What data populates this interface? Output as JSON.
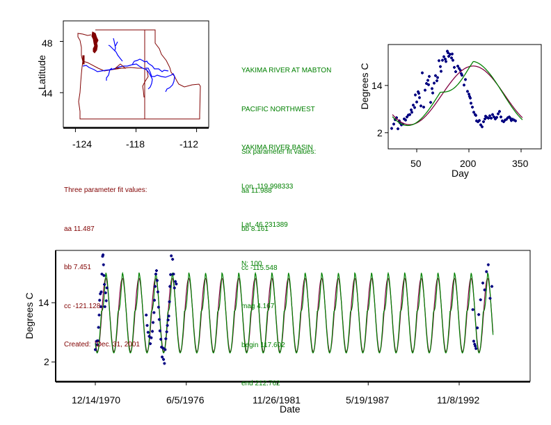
{
  "colors": {
    "map_border": "#800000",
    "map_river": "#0000ff",
    "station_info": "#008000",
    "three_param_text": "#800000",
    "points": "#000080",
    "three_param_curve": "#800040",
    "six_param_curve": "#008000"
  },
  "station": {
    "lines": [
      "YAKIMA RIVER AT MABTON",
      "PACIFIC NORTHWEST",
      "YAKIMA RIVER BASIN",
      "Lon. 119.998333",
      "Lat. 46.231389",
      "N: 100"
    ]
  },
  "six_param": {
    "title": "Six parameter fit values:",
    "lines": [
      "aa 11.988",
      "bb 8.161",
      "cc -115.548",
      "mag 4.167",
      "begin 117.602",
      "end 212.762"
    ]
  },
  "three_param": {
    "title": "Three parameter fit values:",
    "lines": [
      "aa 11.487",
      "bb 7.451",
      "cc -121.128",
      "Created:   Dec. 31, 2001"
    ]
  },
  "chart_data": [
    {
      "type": "map",
      "title": "",
      "xlabel": "",
      "ylabel": "Latitude",
      "xlim": [
        -125.2,
        -110.8
      ],
      "ylim": [
        41.3,
        49.6
      ],
      "xticks": [
        -124,
        -118,
        -112
      ],
      "xtick_labels": [
        "-124",
        "-118",
        "-112"
      ],
      "yticks": [
        48,
        44
      ],
      "ytick_labels": [
        "48",
        "44"
      ],
      "layers": [
        "state boundaries (WA, OR, ID)",
        "rivers (Columbia, Snake, Yakima)",
        "station marker"
      ]
    },
    {
      "type": "scatter",
      "title": "",
      "xlabel": "Day",
      "ylabel": "Degrees C",
      "xlim": [
        -32,
        408
      ],
      "ylim": [
        -2.1,
        24.4
      ],
      "xticks": [
        50,
        200,
        350
      ],
      "xtick_labels": [
        "50",
        "200",
        "350"
      ],
      "yticks": [
        14,
        2
      ],
      "ytick_labels": [
        "14",
        "2"
      ],
      "series": [
        {
          "name": "observations",
          "kind": "points",
          "x": [
            -22,
            -16,
            -12,
            -8,
            -4,
            0,
            2,
            6,
            10,
            14,
            18,
            22,
            26,
            30,
            34,
            36,
            40,
            44,
            46,
            50,
            54,
            56,
            58,
            62,
            66,
            70,
            74,
            78,
            82,
            84,
            86,
            90,
            94,
            96,
            100,
            104,
            108,
            110,
            114,
            118,
            120,
            124,
            128,
            132,
            134,
            138,
            140,
            142,
            146,
            150,
            152,
            154,
            158,
            162,
            168,
            172,
            176,
            178,
            180,
            186,
            190,
            196,
            200,
            202,
            204,
            206,
            210,
            214,
            218,
            220,
            222,
            226,
            230,
            234,
            238,
            242,
            246,
            248,
            252,
            256,
            260,
            264,
            268,
            272,
            276,
            280,
            284,
            288,
            292,
            296,
            300,
            304,
            308,
            312,
            316,
            320,
            322,
            326,
            330,
            334
          ],
          "y": [
            3.1,
            4.2,
            5.3,
            5.8,
            3.0,
            5.0,
            4.5,
            4.0,
            4.2,
            5.5,
            5.2,
            6.0,
            6.5,
            6.6,
            7.8,
            7.2,
            9.0,
            8.4,
            11.6,
            9.8,
            12.4,
            12.0,
            10.9,
            8.8,
            17.2,
            8.5,
            12.8,
            14.5,
            15.3,
            14.2,
            16.3,
            9.7,
            13.2,
            12.1,
            14.6,
            16.5,
            15.2,
            16.0,
            20.3,
            18.8,
            17.6,
            20.4,
            21.3,
            20.7,
            20.1,
            22.7,
            22.3,
            21.4,
            21.9,
            21.0,
            22.0,
            20.4,
            18.6,
            17.5,
            18.9,
            18.3,
            17.8,
            17.0,
            16.6,
            14.1,
            15.5,
            12.5,
            11.8,
            11.2,
            10.8,
            9.5,
            8.5,
            7.2,
            6.6,
            6.4,
            5.0,
            4.8,
            5.1,
            4.0,
            3.5,
            4.8,
            5.5,
            6.2,
            5.9,
            5.7,
            6.3,
            5.7,
            6.6,
            6.0,
            5.5,
            5.9,
            6.8,
            7.4,
            6.0,
            5.0,
            4.8,
            5.2,
            5.4,
            5.8,
            6.0,
            5.6,
            5.1,
            5.4,
            5.2,
            5.0
          ]
        },
        {
          "name": "three parameter fit",
          "kind": "curve",
          "aa": 11.487,
          "bb": 7.451,
          "cc": -121.128
        },
        {
          "name": "six parameter fit",
          "kind": "curve",
          "aa": 11.988,
          "bb": 8.161,
          "cc": -115.548,
          "mag": 4.167,
          "begin": 117.602,
          "end": 212.762
        }
      ],
      "x_range_drawn": [
        -20,
        355
      ]
    },
    {
      "type": "line",
      "title": "",
      "xlabel": "Date",
      "ylabel": "Degrees C",
      "x_units": "days since 12/14/1970",
      "xlim": [
        -872,
        9560
      ],
      "ylim": [
        -1.9,
        24.6
      ],
      "xticks": [
        0,
        2000,
        4000,
        6000,
        8000
      ],
      "xtick_labels": [
        "12/14/1970",
        "6/5/1976",
        "11/26/1981",
        "5/19/1987",
        "11/8/1992"
      ],
      "yticks": [
        14,
        2
      ],
      "ytick_labels": [
        "14",
        "2"
      ],
      "curve_range": [
        0,
        8750
      ],
      "series": [
        {
          "name": "observations",
          "kind": "points",
          "x": [
            0,
            30,
            40,
            55,
            70,
            85,
            95,
            110,
            120,
            130,
            145,
            160,
            170,
            180,
            190,
            200,
            210,
            225,
            240,
            255,
            1120,
            1140,
            1160,
            1185,
            1210,
            1230,
            1255,
            1270,
            1290,
            1300,
            1315,
            1330,
            1345,
            1360,
            1375,
            1390,
            1405,
            1420,
            1440,
            1455,
            1470,
            1490,
            1500,
            1520,
            1535,
            1550,
            1570,
            1585,
            1600,
            1615,
            1630,
            1640,
            1655,
            1670,
            1700,
            1720,
            1740,
            1760,
            1780,
            8300,
            8320,
            8340,
            8355,
            8370,
            8400,
            8430,
            8470,
            8520,
            8560,
            8600,
            8640,
            8680,
            8720
          ],
          "y": [
            4.5,
            6.2,
            5.5,
            6.3,
            9.0,
            11.5,
            14.5,
            15.8,
            13.2,
            16.2,
            19.8,
            23.4,
            23.7,
            21.7,
            19.5,
            17.7,
            13.2,
            16.0,
            14.4,
            17.0,
            11.5,
            9.4,
            8.0,
            7.2,
            5.7,
            6.9,
            8.2,
            10.0,
            12.0,
            14.5,
            17.3,
            19.8,
            20.5,
            18.5,
            16.2,
            13.1,
            10.6,
            8.3,
            6.6,
            5.0,
            3.0,
            4.8,
            2.5,
            1.7,
            4.5,
            6.7,
            8.1,
            9.4,
            10.5,
            11.3,
            14.2,
            17.3,
            19.7,
            23.5,
            22.8,
            19.8,
            17.0,
            18.3,
            17.8,
            12.6,
            6.2,
            5.6,
            5.2,
            4.7,
            8.9,
            11.6,
            14.6,
            18.0,
            16.6,
            20.3,
            21.7,
            14.9,
            17.3
          ]
        },
        {
          "name": "three parameter fit",
          "kind": "curve",
          "aa": 11.487,
          "bb": 7.451,
          "cc": -121.128
        },
        {
          "name": "six parameter fit",
          "kind": "curve",
          "aa": 11.988,
          "bb": 8.161,
          "cc": -115.548,
          "mag": 4.167,
          "begin": 117.602,
          "end": 212.762
        }
      ]
    }
  ]
}
